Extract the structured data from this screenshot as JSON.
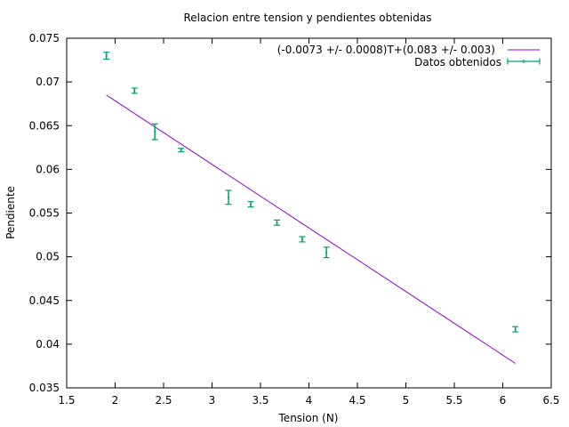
{
  "chart_data": {
    "type": "scatter",
    "title": "Relacion entre tension y pendientes obtenidas",
    "xlabel": "Tension (N)",
    "ylabel": "Pendiente",
    "xlim": [
      1.5,
      6.5
    ],
    "ylim": [
      0.035,
      0.075
    ],
    "xticks": [
      "1.5",
      "2",
      "2.5",
      "3",
      "3.5",
      "4",
      "4.5",
      "5",
      "5.5",
      "6",
      "6.5"
    ],
    "yticks": [
      "0.035",
      "0.04",
      "0.045",
      "0.05",
      "0.055",
      "0.06",
      "0.065",
      "0.07",
      "0.075"
    ],
    "grid": false,
    "legend_position": "top-right",
    "colors": {
      "fit": "#9400d3",
      "data": "#009e73",
      "axis": "#000000"
    },
    "series": [
      {
        "name": "(-0.0073 +/- 0.0008)T+(0.083 +/- 0.003)",
        "kind": "line",
        "x": [
          1.91,
          6.13
        ],
        "y": [
          0.0685,
          0.0378
        ]
      },
      {
        "name": "Datos obtenidos",
        "kind": "errorbars",
        "points": [
          {
            "x": 1.91,
            "y": 0.073,
            "yerr": 0.0004,
            "xerr": 0.01
          },
          {
            "x": 2.2,
            "y": 0.069,
            "yerr": 0.0003,
            "xerr": 0.01
          },
          {
            "x": 2.41,
            "y": 0.0643,
            "yerr": 0.0009,
            "xerr": 0.01
          },
          {
            "x": 2.68,
            "y": 0.0622,
            "yerr": 0.0002,
            "xerr": 0.01
          },
          {
            "x": 3.17,
            "y": 0.0568,
            "yerr": 0.0008,
            "xerr": 0.01
          },
          {
            "x": 3.4,
            "y": 0.056,
            "yerr": 0.0003,
            "xerr": 0.01
          },
          {
            "x": 3.67,
            "y": 0.0539,
            "yerr": 0.0003,
            "xerr": 0.01
          },
          {
            "x": 3.93,
            "y": 0.052,
            "yerr": 0.0003,
            "xerr": 0.01
          },
          {
            "x": 4.18,
            "y": 0.0505,
            "yerr": 0.0006,
            "xerr": 0.01
          },
          {
            "x": 6.13,
            "y": 0.0417,
            "yerr": 0.0003,
            "xerr": 0.01
          }
        ]
      }
    ]
  }
}
